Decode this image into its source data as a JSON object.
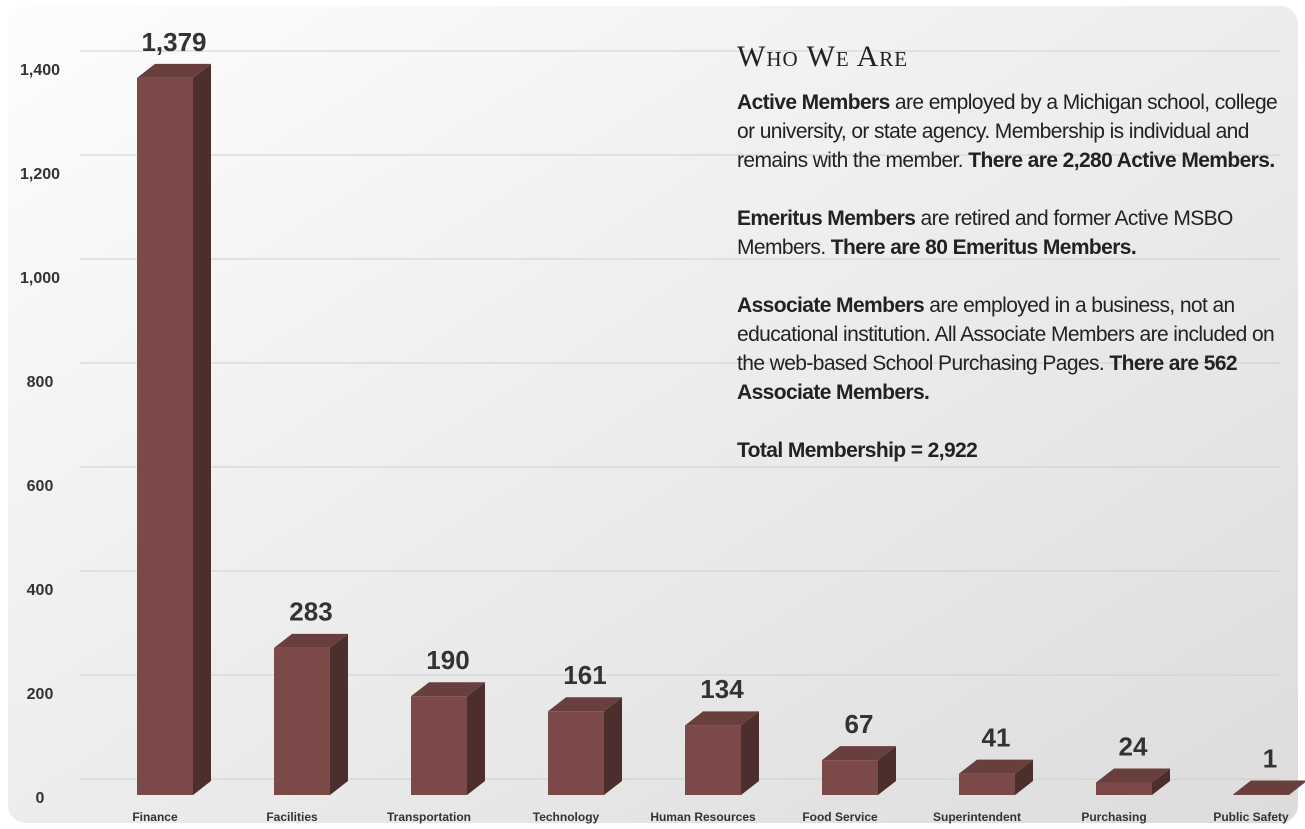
{
  "chart_data": {
    "type": "bar3d",
    "categories": [
      "Finance",
      "Facilities",
      "Transportation",
      "Technology",
      "Human Resources",
      "Food Service",
      "Superintendent",
      "Purchasing",
      "Public Safety"
    ],
    "values": [
      1379,
      283,
      190,
      161,
      134,
      67,
      41,
      24,
      1
    ],
    "value_labels": [
      "1,379",
      "283",
      "190",
      "161",
      "134",
      "67",
      "41",
      "24",
      "1"
    ],
    "color": "#7b4a48",
    "ylim": [
      0,
      1400
    ],
    "yticks": [
      0,
      200,
      400,
      600,
      800,
      {
        "value": 1000,
        "label": "1,000"
      },
      {
        "value": 1200,
        "label": "1,200"
      },
      {
        "value": 1400,
        "label": "1,400"
      }
    ],
    "grid": true
  },
  "panel": {
    "title": "Who We Are",
    "paragraphs": [
      [
        {
          "text": "Active Members",
          "bold": true
        },
        {
          "text": " are employed by a Michigan school, college or university, or state agency. Membership is individual and remains with the member. ",
          "bold": false
        },
        {
          "text": "There are 2,280 Active Members.",
          "bold": true
        }
      ],
      [
        {
          "text": "Emeritus Members",
          "bold": true
        },
        {
          "text": " are retired and former Active MSBO Members. ",
          "bold": false
        },
        {
          "text": "There are 80 Emeritus Members.",
          "bold": true
        }
      ],
      [
        {
          "text": "Associate Members",
          "bold": true
        },
        {
          "text": " are employed in a business, not an educational institution. All Associate Members are included on the web-based School Purchasing Pages. ",
          "bold": false
        },
        {
          "text": "There are 562 Associate Members.",
          "bold": true
        }
      ],
      [
        {
          "text": "Total Membership = 2,922",
          "bold": true
        }
      ]
    ]
  }
}
